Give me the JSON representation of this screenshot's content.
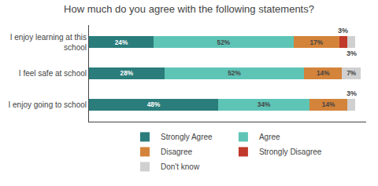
{
  "chart_data": {
    "type": "bar",
    "orientation": "horizontal",
    "stacked": true,
    "title": "How much do you agree with the following statements?",
    "categories": [
      "I enjoy going to school",
      "I feel safe at school",
      "I enjoy learning at this\nschool"
    ],
    "series": [
      {
        "name": "Strongly Agree",
        "color": "#2a7d7b",
        "values": [
          48,
          28,
          24
        ],
        "value_labels": [
          "48%",
          "28%",
          "24%"
        ]
      },
      {
        "name": "Agree",
        "color": "#5ec4b6",
        "values": [
          34,
          52,
          52
        ],
        "value_labels": [
          "34%",
          "52%",
          "52%"
        ]
      },
      {
        "name": "Disagree",
        "color": "#d4833a",
        "values": [
          14,
          14,
          17
        ],
        "value_labels": [
          "14%",
          "14%",
          "17%"
        ]
      },
      {
        "name": "Strongly Disagree",
        "color": "#c0392b",
        "values": [
          0,
          0,
          3
        ],
        "value_labels": [
          null,
          null,
          "3%"
        ]
      },
      {
        "name": "Don't know",
        "color": "#d0d0d0",
        "values": [
          3,
          7,
          3
        ],
        "value_labels": [
          "3%",
          "7%",
          "3%"
        ]
      }
    ],
    "xlim": [
      0,
      103
    ],
    "xticks": [],
    "grid": false,
    "legend": "bottom",
    "data_labels": true,
    "tick_labels": "y"
  }
}
